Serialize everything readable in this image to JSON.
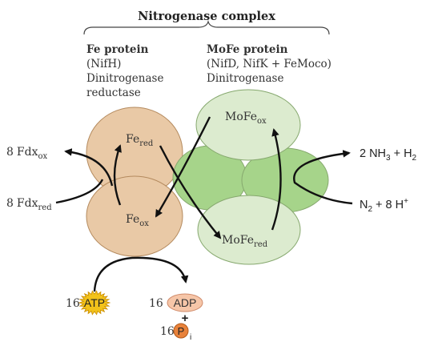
{
  "title": "Nitrogenase complex",
  "fe_protein": {
    "heading": "Fe protein",
    "line1": "(NifH)",
    "line2": "Dinitrogenase",
    "line3": "reductase"
  },
  "mofe_protein": {
    "heading": "MoFe protein",
    "line1": "(NifD, NifK + FeMoco)",
    "line2": "Dinitrogenase"
  },
  "states": {
    "fe_red": {
      "base": "Fe",
      "sub": "red"
    },
    "fe_ox": {
      "base": "Fe",
      "sub": "ox"
    },
    "mofe_ox": {
      "base": "MoFe",
      "sub": "ox"
    },
    "mofe_red": {
      "base": "MoFe",
      "sub": "red"
    }
  },
  "ferredoxin": {
    "ox": {
      "coef": "8",
      "base": "Fdx",
      "sub": "ox"
    },
    "red": {
      "coef": "8",
      "base": "Fdx",
      "sub": "red"
    }
  },
  "products": {
    "coef": "2",
    "a": "NH",
    "a_sub": "3",
    "plus": "+",
    "b": "H",
    "b_sub": "2"
  },
  "substrates": {
    "coef": "N",
    "a_sub": "2",
    "plus": "+ 8",
    "b": "H",
    "b_sup": "+"
  },
  "energy": {
    "atp": {
      "coef": "16",
      "label": "ATP"
    },
    "adp": {
      "coef": "16",
      "label": "ADP"
    },
    "plus": "+",
    "pi": {
      "coef": "16",
      "label": "P",
      "sub": "i"
    }
  },
  "colors": {
    "fe_fill": "#e9c9a6",
    "fe_stroke": "#b48a5e",
    "mofe_light": "#dcebcf",
    "mofe_dark": "#a6d48a",
    "mofe_stroke": "#86a86e",
    "atp_fill": "#f2c21a",
    "adp_fill": "#f6c6a8",
    "pi_fill": "#e8823b"
  }
}
